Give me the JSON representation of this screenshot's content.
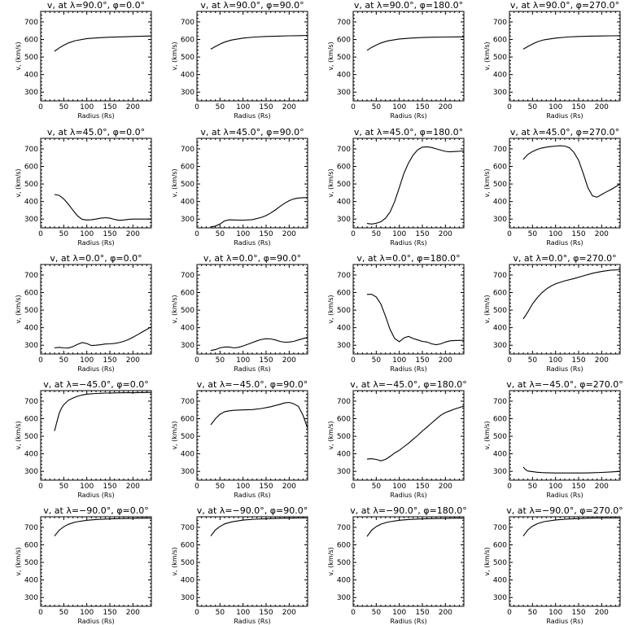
{
  "chart_data": [
    {
      "type": "line",
      "title": "v, at λ=90.0°, φ=0.0°",
      "xlabel": "Radius (Rs)",
      "ylabel": "v, (km/s)",
      "xlim": [
        0,
        240
      ],
      "ylim": [
        250,
        760
      ],
      "x": [
        30,
        40,
        50,
        60,
        75,
        100,
        125,
        150,
        175,
        200,
        225,
        240
      ],
      "values": [
        533,
        552,
        567,
        580,
        593,
        605,
        610,
        613,
        615,
        617,
        619,
        620
      ]
    },
    {
      "type": "line",
      "title": "v, at λ=90.0°, φ=90.0°",
      "xlabel": "Radius (Rs)",
      "ylabel": "v, (km/s)",
      "xlim": [
        0,
        240
      ],
      "ylim": [
        250,
        760
      ],
      "x": [
        30,
        40,
        50,
        60,
        75,
        100,
        125,
        150,
        175,
        200,
        225,
        240
      ],
      "values": [
        545,
        560,
        573,
        585,
        597,
        608,
        614,
        617,
        619,
        621,
        622,
        623
      ]
    },
    {
      "type": "line",
      "title": "v, at λ=90.0°, φ=180.0°",
      "xlabel": "Radius (Rs)",
      "ylabel": "v, (km/s)",
      "xlim": [
        0,
        240
      ],
      "ylim": [
        250,
        760
      ],
      "x": [
        30,
        40,
        50,
        60,
        75,
        100,
        125,
        150,
        175,
        200,
        225,
        240
      ],
      "values": [
        538,
        555,
        568,
        580,
        592,
        603,
        608,
        611,
        613,
        614,
        615,
        615
      ]
    },
    {
      "type": "line",
      "title": "v, at λ=90.0°, φ=270.0°",
      "xlabel": "Radius (Rs)",
      "ylabel": "v, (km/s)",
      "xlim": [
        0,
        240
      ],
      "ylim": [
        250,
        760
      ],
      "x": [
        30,
        40,
        50,
        60,
        75,
        100,
        125,
        150,
        175,
        200,
        225,
        240
      ],
      "values": [
        545,
        560,
        574,
        586,
        598,
        608,
        614,
        617,
        619,
        620,
        621,
        622
      ]
    },
    {
      "type": "line",
      "title": "v, at λ=45.0°, φ=0.0°",
      "xlabel": "Radius (Rs)",
      "ylabel": "v, (km/s)",
      "xlim": [
        0,
        240
      ],
      "ylim": [
        250,
        760
      ],
      "x": [
        30,
        40,
        50,
        60,
        70,
        80,
        90,
        100,
        110,
        120,
        130,
        140,
        150,
        160,
        170,
        180,
        190,
        200,
        220,
        240
      ],
      "values": [
        440,
        435,
        415,
        385,
        350,
        318,
        298,
        295,
        296,
        300,
        305,
        308,
        305,
        298,
        293,
        295,
        298,
        300,
        300,
        300
      ]
    },
    {
      "type": "line",
      "title": "v, at λ=45.0°, φ=90.0°",
      "xlabel": "Radius (Rs)",
      "ylabel": "v, (km/s)",
      "xlim": [
        0,
        240
      ],
      "ylim": [
        250,
        760
      ],
      "x": [
        30,
        40,
        50,
        60,
        70,
        80,
        100,
        120,
        140,
        150,
        160,
        170,
        180,
        190,
        200,
        210,
        220,
        240
      ],
      "values": [
        255,
        260,
        272,
        290,
        296,
        295,
        294,
        297,
        310,
        320,
        335,
        352,
        372,
        390,
        405,
        415,
        420,
        423
      ]
    },
    {
      "type": "line",
      "title": "v, at λ=45.0°, φ=180.0°",
      "xlabel": "Radius (Rs)",
      "ylabel": "v, (km/s)",
      "xlim": [
        0,
        240
      ],
      "ylim": [
        250,
        760
      ],
      "x": [
        30,
        40,
        50,
        60,
        70,
        80,
        90,
        100,
        110,
        120,
        130,
        140,
        150,
        160,
        170,
        180,
        190,
        200,
        210,
        220,
        240
      ],
      "values": [
        275,
        272,
        276,
        285,
        305,
        340,
        400,
        480,
        560,
        620,
        665,
        695,
        710,
        712,
        708,
        700,
        693,
        686,
        683,
        685,
        688
      ]
    },
    {
      "type": "line",
      "title": "v, at λ=45.0°, φ=270.0°",
      "xlabel": "Radius (Rs)",
      "ylabel": "v, (km/s)",
      "xlim": [
        0,
        240
      ],
      "ylim": [
        250,
        760
      ],
      "x": [
        30,
        40,
        50,
        60,
        70,
        80,
        90,
        100,
        110,
        120,
        130,
        140,
        150,
        160,
        170,
        180,
        190,
        200,
        210,
        220,
        240
      ],
      "values": [
        640,
        668,
        685,
        697,
        705,
        710,
        713,
        716,
        718,
        716,
        706,
        680,
        635,
        560,
        480,
        432,
        425,
        440,
        455,
        468,
        500
      ]
    },
    {
      "type": "line",
      "title": "v, at λ=0.0°, φ=0.0°",
      "xlabel": "Radius (Rs)",
      "ylabel": "v, (km/s)",
      "xlim": [
        0,
        240
      ],
      "ylim": [
        250,
        760
      ],
      "x": [
        30,
        40,
        50,
        60,
        70,
        80,
        90,
        100,
        110,
        120,
        130,
        140,
        150,
        160,
        170,
        180,
        190,
        200,
        210,
        220,
        240
      ],
      "values": [
        285,
        288,
        285,
        284,
        292,
        305,
        315,
        310,
        298,
        300,
        303,
        307,
        308,
        310,
        315,
        322,
        332,
        345,
        360,
        375,
        405
      ]
    },
    {
      "type": "line",
      "title": "v, at λ=0.0°, φ=90.0°",
      "xlabel": "Radius (Rs)",
      "ylabel": "v, (km/s)",
      "xlim": [
        0,
        240
      ],
      "ylim": [
        250,
        760
      ],
      "x": [
        30,
        40,
        50,
        60,
        70,
        80,
        90,
        100,
        110,
        120,
        130,
        140,
        150,
        160,
        170,
        180,
        190,
        200,
        210,
        220,
        240
      ],
      "values": [
        270,
        275,
        285,
        290,
        290,
        285,
        288,
        296,
        305,
        315,
        325,
        333,
        337,
        336,
        330,
        322,
        317,
        318,
        322,
        330,
        345
      ]
    },
    {
      "type": "line",
      "title": "v, at λ=0.0°, φ=180.0°",
      "xlabel": "Radius (Rs)",
      "ylabel": "v, (km/s)",
      "xlim": [
        0,
        240
      ],
      "ylim": [
        250,
        760
      ],
      "x": [
        30,
        40,
        50,
        60,
        70,
        80,
        90,
        100,
        110,
        120,
        130,
        140,
        150,
        160,
        170,
        180,
        190,
        200,
        210,
        220,
        240
      ],
      "values": [
        590,
        590,
        575,
        535,
        465,
        390,
        338,
        320,
        342,
        350,
        338,
        330,
        322,
        318,
        308,
        303,
        308,
        318,
        325,
        327,
        328
      ]
    },
    {
      "type": "line",
      "title": "v, at λ=0.0°, φ=270.0°",
      "xlabel": "Radius (Rs)",
      "ylabel": "v, (km/s)",
      "xlim": [
        0,
        240
      ],
      "ylim": [
        250,
        760
      ],
      "x": [
        30,
        40,
        50,
        60,
        70,
        80,
        90,
        100,
        120,
        140,
        160,
        180,
        200,
        220,
        240
      ],
      "values": [
        450,
        490,
        535,
        570,
        598,
        620,
        637,
        650,
        667,
        680,
        695,
        710,
        720,
        728,
        730
      ]
    },
    {
      "type": "line",
      "title": "v, at λ=−45.0°, φ=0.0°",
      "xlabel": "Radius (Rs)",
      "ylabel": "v, (km/s)",
      "xlim": [
        0,
        240
      ],
      "ylim": [
        250,
        760
      ],
      "x": [
        30,
        35,
        40,
        45,
        50,
        60,
        70,
        80,
        90,
        100,
        120,
        140,
        160,
        180,
        200,
        220,
        240
      ],
      "values": [
        530,
        580,
        630,
        660,
        680,
        705,
        718,
        728,
        735,
        740,
        744,
        746,
        747,
        748,
        748,
        749,
        750
      ]
    },
    {
      "type": "line",
      "title": "v, at λ=−45.0°, φ=90.0°",
      "xlabel": "Radius (Rs)",
      "ylabel": "v, (km/s)",
      "xlim": [
        0,
        240
      ],
      "ylim": [
        250,
        760
      ],
      "x": [
        30,
        40,
        50,
        60,
        70,
        80,
        100,
        120,
        140,
        160,
        170,
        180,
        190,
        200,
        210,
        220,
        230,
        240
      ],
      "values": [
        565,
        600,
        625,
        640,
        645,
        648,
        650,
        652,
        658,
        668,
        675,
        682,
        690,
        693,
        685,
        670,
        620,
        545
      ]
    },
    {
      "type": "line",
      "title": "v, at λ=−45.0°, φ=180.0°",
      "xlabel": "Radius (Rs)",
      "ylabel": "v, (km/s)",
      "xlim": [
        0,
        240
      ],
      "ylim": [
        250,
        760
      ],
      "x": [
        30,
        40,
        50,
        60,
        70,
        80,
        90,
        100,
        110,
        120,
        130,
        140,
        150,
        160,
        170,
        180,
        190,
        200,
        210,
        220,
        240
      ],
      "values": [
        370,
        372,
        368,
        360,
        368,
        385,
        405,
        420,
        440,
        460,
        483,
        505,
        530,
        552,
        575,
        598,
        620,
        635,
        645,
        655,
        672
      ]
    },
    {
      "type": "line",
      "title": "v, at λ=−45.0°, φ=270.0°",
      "xlabel": "Radius (Rs)",
      "ylabel": "v, (km/s)",
      "xlim": [
        0,
        240
      ],
      "ylim": [
        250,
        760
      ],
      "x": [
        30,
        35,
        40,
        50,
        60,
        70,
        80,
        100,
        120,
        140,
        160,
        180,
        200,
        220,
        240
      ],
      "values": [
        325,
        310,
        302,
        298,
        295,
        293,
        292,
        291,
        291,
        291,
        291,
        292,
        294,
        297,
        300
      ]
    },
    {
      "type": "line",
      "title": "v, at λ=−90.0°, φ=0.0°",
      "xlabel": "Radius (Rs)",
      "ylabel": "v, (km/s)",
      "xlim": [
        0,
        240
      ],
      "ylim": [
        250,
        760
      ],
      "x": [
        30,
        40,
        50,
        60,
        75,
        100,
        125,
        150,
        175,
        200,
        225,
        240
      ],
      "values": [
        650,
        683,
        703,
        717,
        730,
        740,
        745,
        748,
        750,
        751,
        752,
        752
      ]
    },
    {
      "type": "line",
      "title": "v, at λ=−90.0°, φ=90.0°",
      "xlabel": "Radius (Rs)",
      "ylabel": "v, (km/s)",
      "xlim": [
        0,
        240
      ],
      "ylim": [
        250,
        760
      ],
      "x": [
        30,
        40,
        50,
        60,
        75,
        100,
        125,
        150,
        175,
        200,
        225,
        240
      ],
      "values": [
        650,
        685,
        705,
        719,
        731,
        741,
        746,
        749,
        751,
        752,
        753,
        753
      ]
    },
    {
      "type": "line",
      "title": "v, at λ=−90.0°, φ=180.0°",
      "xlabel": "Radius (Rs)",
      "ylabel": "v, (km/s)",
      "xlim": [
        0,
        240
      ],
      "ylim": [
        250,
        760
      ],
      "x": [
        30,
        40,
        50,
        60,
        75,
        100,
        125,
        150,
        175,
        200,
        225,
        240
      ],
      "values": [
        648,
        684,
        704,
        718,
        730,
        740,
        745,
        748,
        750,
        751,
        752,
        752
      ]
    },
    {
      "type": "line",
      "title": "v, at λ=−90.0°, φ=270.0°",
      "xlabel": "Radius (Rs)",
      "ylabel": "v, (km/s)",
      "xlim": [
        0,
        240
      ],
      "ylim": [
        250,
        760
      ],
      "x": [
        30,
        40,
        50,
        60,
        75,
        100,
        125,
        150,
        175,
        200,
        225,
        240
      ],
      "values": [
        650,
        686,
        706,
        720,
        732,
        742,
        747,
        750,
        752,
        753,
        753,
        753
      ]
    }
  ],
  "axes": {
    "x_ticks": [
      0,
      50,
      100,
      150,
      200
    ],
    "y_ticks": [
      300,
      400,
      500,
      600,
      700
    ]
  }
}
